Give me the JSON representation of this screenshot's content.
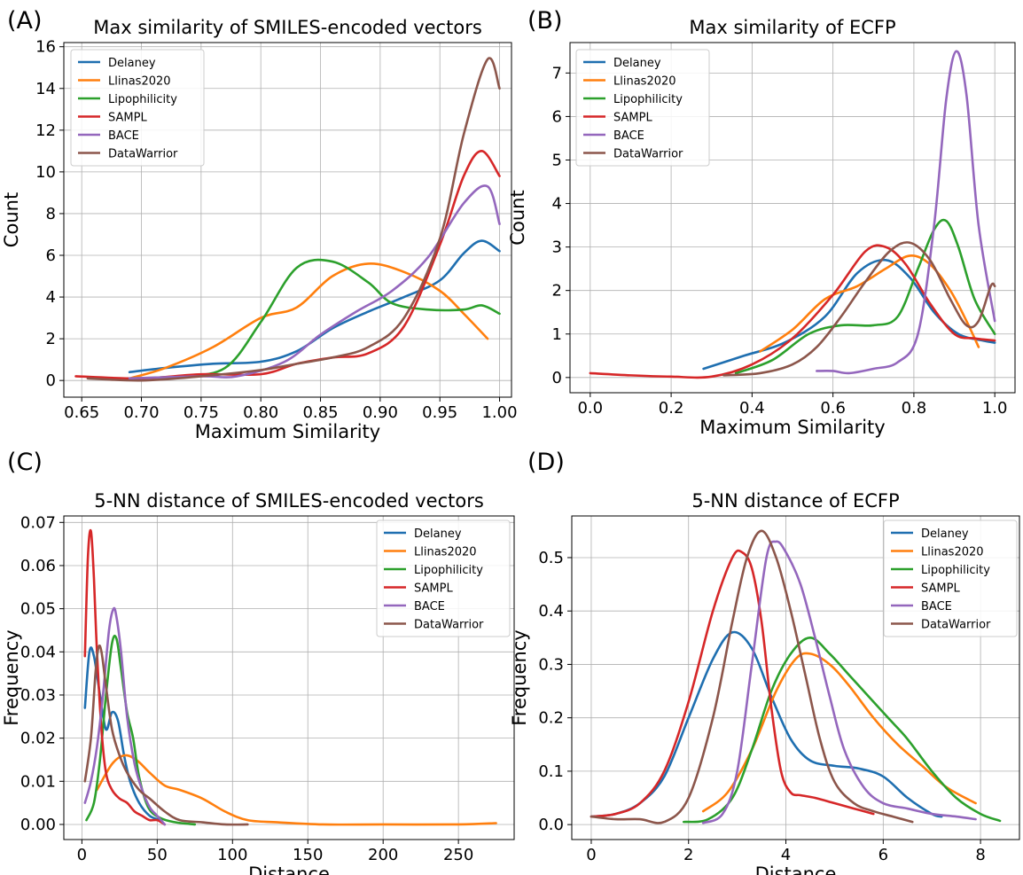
{
  "colors": {
    "Delaney": "#1f6fb0",
    "Llinas2020": "#ff7f0e",
    "Lipophilicity": "#2ca02c",
    "SAMPL": "#d62728",
    "BACE": "#9467bd",
    "DataWarrior": "#8c564b"
  },
  "chart_data": [
    {
      "letter": "(A)",
      "type": "line",
      "title": "Max similarity of SMILES-encoded vectors",
      "xlabel": "Maximum Similarity",
      "ylabel": "Count",
      "xlim": [
        0.635,
        1.01
      ],
      "ylim": [
        -0.8,
        16.2
      ],
      "xticks": [
        0.65,
        0.7,
        0.75,
        0.8,
        0.85,
        0.9,
        0.95,
        1.0
      ],
      "xticklabels": [
        "0.65",
        "0.70",
        "0.75",
        "0.80",
        "0.85",
        "0.90",
        "0.95",
        "1.00"
      ],
      "yticks": [
        0,
        2,
        4,
        6,
        8,
        10,
        12,
        14,
        16
      ],
      "yticklabels": [
        "0",
        "2",
        "4",
        "6",
        "8",
        "10",
        "12",
        "14",
        "16"
      ],
      "grid": true,
      "legend_position": "upper-left",
      "series": [
        {
          "name": "Delaney",
          "x": [
            0.69,
            0.72,
            0.76,
            0.8,
            0.83,
            0.86,
            0.89,
            0.92,
            0.95,
            0.97,
            0.985,
            1.0
          ],
          "y": [
            0.4,
            0.6,
            0.8,
            0.9,
            1.4,
            2.5,
            3.3,
            4.0,
            4.8,
            6.1,
            6.7,
            6.2
          ]
        },
        {
          "name": "Llinas2020",
          "x": [
            0.69,
            0.72,
            0.76,
            0.8,
            0.83,
            0.86,
            0.89,
            0.92,
            0.95,
            0.97,
            0.99
          ],
          "y": [
            0.1,
            0.6,
            1.6,
            3.0,
            3.5,
            5.0,
            5.6,
            5.2,
            4.3,
            3.2,
            2.0
          ]
        },
        {
          "name": "Lipophilicity",
          "x": [
            0.69,
            0.73,
            0.77,
            0.8,
            0.83,
            0.86,
            0.89,
            0.91,
            0.94,
            0.97,
            0.985,
            1.0
          ],
          "y": [
            0.1,
            0.2,
            0.6,
            2.8,
            5.4,
            5.7,
            4.7,
            3.7,
            3.4,
            3.4,
            3.6,
            3.2
          ]
        },
        {
          "name": "SAMPL",
          "x": [
            0.645,
            0.7,
            0.75,
            0.8,
            0.83,
            0.86,
            0.89,
            0.92,
            0.95,
            0.97,
            0.985,
            1.0
          ],
          "y": [
            0.2,
            0.1,
            0.3,
            0.3,
            0.8,
            1.1,
            1.3,
            2.6,
            6.5,
            9.8,
            11.0,
            9.8
          ]
        },
        {
          "name": "BACE",
          "x": [
            0.69,
            0.75,
            0.78,
            0.82,
            0.85,
            0.88,
            0.91,
            0.94,
            0.97,
            0.99,
            1.0
          ],
          "y": [
            0.1,
            0.2,
            0.2,
            0.9,
            2.2,
            3.3,
            4.3,
            5.9,
            8.5,
            9.3,
            7.5
          ]
        },
        {
          "name": "DataWarrior",
          "x": [
            0.655,
            0.7,
            0.75,
            0.8,
            0.83,
            0.86,
            0.89,
            0.92,
            0.95,
            0.97,
            0.99,
            1.0
          ],
          "y": [
            0.1,
            0.0,
            0.2,
            0.5,
            0.8,
            1.1,
            1.6,
            3.0,
            6.8,
            11.8,
            15.4,
            14.0
          ]
        }
      ]
    },
    {
      "letter": "(B)",
      "type": "line",
      "title": "Max similarity of ECFP",
      "xlabel": "Maximum Similarity",
      "ylabel": "Count",
      "xlim": [
        -0.05,
        1.05
      ],
      "ylim": [
        -0.35,
        7.7
      ],
      "xticks": [
        0.0,
        0.2,
        0.4,
        0.6,
        0.8,
        1.0
      ],
      "xticklabels": [
        "0.0",
        "0.2",
        "0.4",
        "0.6",
        "0.8",
        "1.0"
      ],
      "yticks": [
        0,
        1,
        2,
        3,
        4,
        5,
        6,
        7
      ],
      "yticklabels": [
        "0",
        "1",
        "2",
        "3",
        "4",
        "5",
        "6",
        "7"
      ],
      "grid": true,
      "legend_position": "upper-left",
      "series": [
        {
          "name": "Delaney",
          "x": [
            0.28,
            0.38,
            0.48,
            0.58,
            0.66,
            0.73,
            0.79,
            0.85,
            0.91,
            0.97,
            1.0
          ],
          "y": [
            0.2,
            0.5,
            0.8,
            1.4,
            2.4,
            2.7,
            2.3,
            1.5,
            1.0,
            0.85,
            0.8
          ]
        },
        {
          "name": "Llinas2020",
          "x": [
            0.42,
            0.5,
            0.58,
            0.66,
            0.73,
            0.79,
            0.84,
            0.89,
            0.93,
            0.96
          ],
          "y": [
            0.6,
            1.1,
            1.8,
            2.1,
            2.5,
            2.8,
            2.6,
            2.0,
            1.3,
            0.7
          ]
        },
        {
          "name": "Lipophilicity",
          "x": [
            0.36,
            0.45,
            0.54,
            0.62,
            0.7,
            0.76,
            0.81,
            0.85,
            0.88,
            0.91,
            0.95,
            1.0
          ],
          "y": [
            0.1,
            0.4,
            1.0,
            1.2,
            1.2,
            1.4,
            2.5,
            3.4,
            3.6,
            3.0,
            1.8,
            1.0
          ]
        },
        {
          "name": "SAMPL",
          "x": [
            0.0,
            0.1,
            0.2,
            0.3,
            0.4,
            0.5,
            0.6,
            0.68,
            0.73,
            0.78,
            0.84,
            0.9,
            0.95,
            1.0
          ],
          "y": [
            0.1,
            0.05,
            0.02,
            0.02,
            0.3,
            0.9,
            1.9,
            2.9,
            3.0,
            2.6,
            1.7,
            1.0,
            0.9,
            0.85
          ]
        },
        {
          "name": "BACE",
          "x": [
            0.56,
            0.6,
            0.64,
            0.7,
            0.76,
            0.81,
            0.85,
            0.88,
            0.905,
            0.93,
            0.96,
            1.0
          ],
          "y": [
            0.15,
            0.15,
            0.1,
            0.2,
            0.35,
            1.0,
            3.5,
            6.4,
            7.5,
            6.5,
            3.5,
            1.3
          ]
        },
        {
          "name": "DataWarrior",
          "x": [
            0.33,
            0.42,
            0.5,
            0.56,
            0.62,
            0.68,
            0.74,
            0.79,
            0.84,
            0.89,
            0.93,
            0.96,
            0.99,
            1.0
          ],
          "y": [
            0.05,
            0.1,
            0.3,
            0.7,
            1.4,
            2.2,
            2.9,
            3.1,
            2.7,
            1.8,
            1.2,
            1.3,
            2.1,
            2.1
          ]
        }
      ]
    },
    {
      "letter": "(C)",
      "type": "line",
      "title": "5-NN distance of SMILES-encoded vectors",
      "xlabel": "Distance",
      "ylabel": "Frequency",
      "xlim": [
        -12,
        287
      ],
      "ylim": [
        -0.0035,
        0.0715
      ],
      "xticks": [
        0,
        50,
        100,
        150,
        200,
        250
      ],
      "xticklabels": [
        "0",
        "50",
        "100",
        "150",
        "200",
        "250"
      ],
      "yticks": [
        0.0,
        0.01,
        0.02,
        0.03,
        0.04,
        0.05,
        0.06,
        0.07
      ],
      "yticklabels": [
        "0.00",
        "0.01",
        "0.02",
        "0.03",
        "0.04",
        "0.05",
        "0.06",
        "0.07"
      ],
      "grid": true,
      "legend_position": "upper-right",
      "series": [
        {
          "name": "Delaney",
          "x": [
            2,
            5,
            8,
            12,
            16,
            20,
            24,
            28,
            32,
            38,
            45,
            52
          ],
          "y": [
            0.027,
            0.04,
            0.039,
            0.03,
            0.022,
            0.026,
            0.024,
            0.016,
            0.01,
            0.005,
            0.002,
            0.001
          ]
        },
        {
          "name": "Llinas2020",
          "x": [
            10,
            20,
            28,
            36,
            45,
            55,
            65,
            80,
            95,
            110,
            130,
            160,
            200,
            250,
            275
          ],
          "y": [
            0.008,
            0.014,
            0.016,
            0.015,
            0.012,
            0.009,
            0.008,
            0.006,
            0.003,
            0.001,
            0.0005,
            0.0,
            0.0,
            0.0,
            0.0003
          ]
        },
        {
          "name": "Lipophilicity",
          "x": [
            3,
            8,
            12,
            16,
            20,
            23,
            26,
            30,
            34,
            38,
            44,
            52,
            62,
            75
          ],
          "y": [
            0.001,
            0.005,
            0.015,
            0.03,
            0.042,
            0.043,
            0.036,
            0.026,
            0.02,
            0.011,
            0.004,
            0.0015,
            0.0005,
            0.0
          ]
        },
        {
          "name": "SAMPL",
          "x": [
            2,
            4,
            6,
            8,
            10,
            13,
            16,
            20,
            25,
            30,
            35,
            40,
            45,
            50,
            55
          ],
          "y": [
            0.039,
            0.062,
            0.068,
            0.057,
            0.04,
            0.022,
            0.012,
            0.008,
            0.006,
            0.005,
            0.003,
            0.002,
            0.001,
            0.001,
            0.0
          ]
        },
        {
          "name": "BACE",
          "x": [
            2,
            6,
            10,
            14,
            18,
            21,
            23,
            26,
            30,
            35,
            40,
            45,
            50,
            55
          ],
          "y": [
            0.005,
            0.01,
            0.018,
            0.03,
            0.045,
            0.05,
            0.048,
            0.04,
            0.025,
            0.014,
            0.008,
            0.004,
            0.002,
            0.0
          ]
        },
        {
          "name": "DataWarrior",
          "x": [
            2,
            6,
            9,
            11,
            13,
            16,
            20,
            25,
            30,
            38,
            45,
            55,
            65,
            80,
            95,
            110
          ],
          "y": [
            0.01,
            0.02,
            0.035,
            0.041,
            0.04,
            0.032,
            0.022,
            0.016,
            0.012,
            0.008,
            0.006,
            0.003,
            0.001,
            0.0005,
            0.0,
            0.0
          ]
        }
      ]
    },
    {
      "letter": "(D)",
      "type": "line",
      "title": "5-NN distance of ECFP",
      "xlabel": "Distance",
      "ylabel": "Frequency",
      "xlim": [
        -0.4,
        8.8
      ],
      "ylim": [
        -0.028,
        0.578
      ],
      "xticks": [
        0,
        2,
        4,
        6,
        8
      ],
      "xticklabels": [
        "0",
        "2",
        "4",
        "6",
        "8"
      ],
      "yticks": [
        0.0,
        0.1,
        0.2,
        0.3,
        0.4,
        0.5
      ],
      "yticklabels": [
        "0.0",
        "0.1",
        "0.2",
        "0.3",
        "0.4",
        "0.5"
      ],
      "grid": true,
      "legend_position": "upper-right",
      "series": [
        {
          "name": "Delaney",
          "x": [
            0.0,
            0.5,
            1.0,
            1.5,
            2.0,
            2.5,
            2.9,
            3.3,
            3.7,
            4.1,
            4.5,
            5.0,
            5.5,
            6.0,
            6.5,
            7.0,
            7.2
          ],
          "y": [
            0.015,
            0.02,
            0.04,
            0.09,
            0.2,
            0.31,
            0.36,
            0.33,
            0.24,
            0.16,
            0.12,
            0.11,
            0.105,
            0.09,
            0.05,
            0.02,
            0.015
          ]
        },
        {
          "name": "Llinas2020",
          "x": [
            2.3,
            2.8,
            3.3,
            3.8,
            4.2,
            4.5,
            4.9,
            5.3,
            5.8,
            6.3,
            6.8,
            7.3,
            7.9
          ],
          "y": [
            0.025,
            0.06,
            0.14,
            0.25,
            0.31,
            0.32,
            0.3,
            0.26,
            0.2,
            0.15,
            0.11,
            0.07,
            0.04
          ]
        },
        {
          "name": "Lipophilicity",
          "x": [
            1.9,
            2.4,
            2.9,
            3.3,
            3.7,
            4.1,
            4.5,
            4.9,
            5.3,
            5.7,
            6.1,
            6.5,
            7.0,
            7.5,
            8.0,
            8.4
          ],
          "y": [
            0.005,
            0.01,
            0.05,
            0.14,
            0.25,
            0.32,
            0.35,
            0.32,
            0.28,
            0.24,
            0.2,
            0.16,
            0.1,
            0.05,
            0.02,
            0.007
          ]
        },
        {
          "name": "SAMPL",
          "x": [
            0.0,
            0.5,
            1.0,
            1.5,
            2.0,
            2.5,
            2.9,
            3.1,
            3.3,
            3.5,
            3.7,
            3.9,
            4.1,
            4.3,
            4.6,
            5.0,
            5.4,
            5.8
          ],
          "y": [
            0.015,
            0.02,
            0.04,
            0.1,
            0.23,
            0.4,
            0.5,
            0.51,
            0.48,
            0.38,
            0.22,
            0.1,
            0.06,
            0.055,
            0.05,
            0.04,
            0.03,
            0.02
          ]
        },
        {
          "name": "BACE",
          "x": [
            2.3,
            2.7,
            3.0,
            3.3,
            3.6,
            3.8,
            4.0,
            4.3,
            4.6,
            4.9,
            5.2,
            5.6,
            6.0,
            6.5,
            7.0,
            7.5,
            7.9
          ],
          "y": [
            0.003,
            0.02,
            0.1,
            0.3,
            0.5,
            0.53,
            0.51,
            0.45,
            0.35,
            0.24,
            0.14,
            0.07,
            0.04,
            0.03,
            0.02,
            0.015,
            0.01
          ]
        },
        {
          "name": "DataWarrior",
          "x": [
            0.0,
            0.5,
            1.0,
            1.5,
            2.0,
            2.5,
            2.9,
            3.2,
            3.5,
            3.8,
            4.1,
            4.4,
            4.7,
            5.0,
            5.4,
            5.8,
            6.2,
            6.6
          ],
          "y": [
            0.015,
            0.01,
            0.01,
            0.005,
            0.05,
            0.2,
            0.38,
            0.5,
            0.55,
            0.5,
            0.4,
            0.28,
            0.16,
            0.08,
            0.04,
            0.025,
            0.015,
            0.005
          ]
        }
      ]
    }
  ]
}
